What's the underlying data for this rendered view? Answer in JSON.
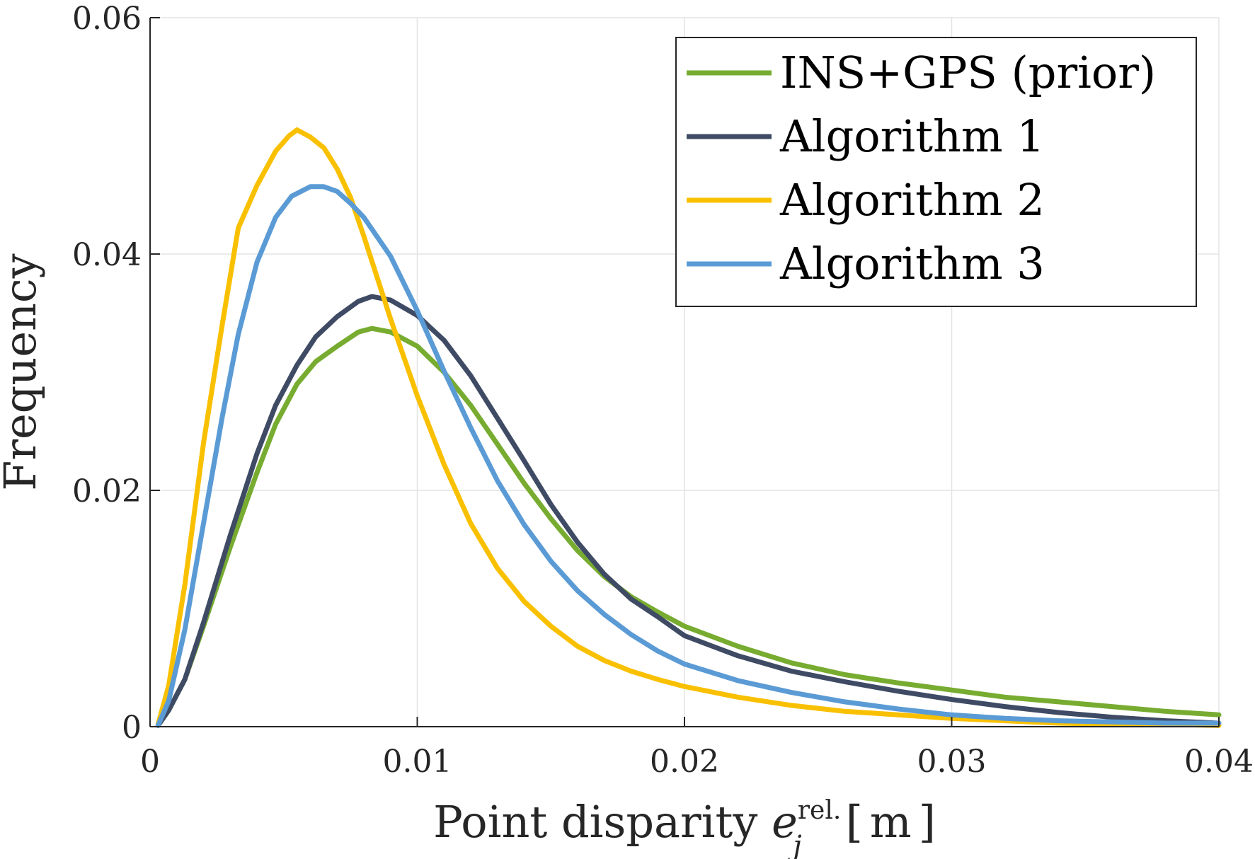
{
  "chart_data": {
    "type": "line",
    "xlabel_parts": {
      "prefix": "Point disparity ",
      "var": "e",
      "sub": "j",
      "sup": "rel.",
      "unit_open": "[",
      "unit": "m",
      "unit_close": "]"
    },
    "ylabel": "Frequency",
    "xlim": [
      0,
      0.04
    ],
    "ylim": [
      0,
      0.06
    ],
    "xticks": [
      0,
      0.01,
      0.02,
      0.03,
      0.04
    ],
    "xtick_labels": [
      "0",
      "0.01",
      "0.02",
      "0.03",
      "0.04"
    ],
    "yticks": [
      0,
      0.02,
      0.04,
      0.06
    ],
    "ytick_labels": [
      "0",
      "0.02",
      "0.04",
      "0.06"
    ],
    "grid": true,
    "legend_position": "top-right",
    "series": [
      {
        "name": "INS+GPS (prior)",
        "color": "#77AC30",
        "points": [
          [
            0.0003,
            0.0001
          ],
          [
            0.0007,
            0.0014
          ],
          [
            0.0013,
            0.004
          ],
          [
            0.002,
            0.0085
          ],
          [
            0.003,
            0.0152
          ],
          [
            0.004,
            0.0215
          ],
          [
            0.0047,
            0.0256
          ],
          [
            0.0055,
            0.029
          ],
          [
            0.0062,
            0.0309
          ],
          [
            0.007,
            0.0322
          ],
          [
            0.0078,
            0.0334
          ],
          [
            0.0083,
            0.0337
          ],
          [
            0.009,
            0.0334
          ],
          [
            0.01,
            0.0322
          ],
          [
            0.011,
            0.03
          ],
          [
            0.012,
            0.0272
          ],
          [
            0.013,
            0.0239
          ],
          [
            0.014,
            0.0206
          ],
          [
            0.015,
            0.0176
          ],
          [
            0.016,
            0.0149
          ],
          [
            0.017,
            0.0127
          ],
          [
            0.018,
            0.011
          ],
          [
            0.019,
            0.0097
          ],
          [
            0.02,
            0.0085
          ],
          [
            0.022,
            0.0068
          ],
          [
            0.024,
            0.0054
          ],
          [
            0.026,
            0.0044
          ],
          [
            0.028,
            0.0037
          ],
          [
            0.03,
            0.0031
          ],
          [
            0.032,
            0.0025
          ],
          [
            0.034,
            0.0021
          ],
          [
            0.036,
            0.0017
          ],
          [
            0.038,
            0.0013
          ],
          [
            0.04,
            0.001
          ]
        ]
      },
      {
        "name": "Algorithm 1",
        "color": "#3F4B64",
        "points": [
          [
            0.0003,
            0.0001
          ],
          [
            0.0007,
            0.0014
          ],
          [
            0.0013,
            0.004
          ],
          [
            0.002,
            0.0088
          ],
          [
            0.003,
            0.0162
          ],
          [
            0.004,
            0.0231
          ],
          [
            0.0047,
            0.0272
          ],
          [
            0.0055,
            0.0306
          ],
          [
            0.0062,
            0.033
          ],
          [
            0.007,
            0.0347
          ],
          [
            0.0078,
            0.036
          ],
          [
            0.0083,
            0.0364
          ],
          [
            0.009,
            0.0361
          ],
          [
            0.01,
            0.0348
          ],
          [
            0.011,
            0.0327
          ],
          [
            0.012,
            0.0297
          ],
          [
            0.013,
            0.0261
          ],
          [
            0.014,
            0.0225
          ],
          [
            0.015,
            0.0188
          ],
          [
            0.016,
            0.0156
          ],
          [
            0.017,
            0.0129
          ],
          [
            0.018,
            0.0108
          ],
          [
            0.019,
            0.0093
          ],
          [
            0.02,
            0.0077
          ],
          [
            0.022,
            0.006
          ],
          [
            0.024,
            0.0047
          ],
          [
            0.026,
            0.0038
          ],
          [
            0.028,
            0.003
          ],
          [
            0.03,
            0.0023
          ],
          [
            0.032,
            0.0017
          ],
          [
            0.034,
            0.0012
          ],
          [
            0.036,
            0.0008
          ],
          [
            0.038,
            0.0005
          ],
          [
            0.04,
            0.0003
          ]
        ]
      },
      {
        "name": "Algorithm 2",
        "color": "#F9C000",
        "points": [
          [
            0.0003,
            0.0002
          ],
          [
            0.0007,
            0.0035
          ],
          [
            0.0013,
            0.012
          ],
          [
            0.002,
            0.024
          ],
          [
            0.0027,
            0.034
          ],
          [
            0.0033,
            0.0422
          ],
          [
            0.004,
            0.0458
          ],
          [
            0.0047,
            0.0487
          ],
          [
            0.0052,
            0.05
          ],
          [
            0.0055,
            0.0505
          ],
          [
            0.006,
            0.0499
          ],
          [
            0.0065,
            0.049
          ],
          [
            0.007,
            0.0472
          ],
          [
            0.0075,
            0.0448
          ],
          [
            0.008,
            0.0415
          ],
          [
            0.009,
            0.0345
          ],
          [
            0.01,
            0.028
          ],
          [
            0.011,
            0.0222
          ],
          [
            0.012,
            0.0172
          ],
          [
            0.013,
            0.0134
          ],
          [
            0.014,
            0.0106
          ],
          [
            0.015,
            0.0085
          ],
          [
            0.016,
            0.0068
          ],
          [
            0.017,
            0.0056
          ],
          [
            0.018,
            0.0047
          ],
          [
            0.019,
            0.004
          ],
          [
            0.02,
            0.0034
          ],
          [
            0.022,
            0.0025
          ],
          [
            0.024,
            0.0018
          ],
          [
            0.026,
            0.0013
          ],
          [
            0.028,
            0.001
          ],
          [
            0.03,
            0.0007
          ],
          [
            0.032,
            0.0005
          ],
          [
            0.034,
            0.0003
          ],
          [
            0.036,
            0.0002
          ],
          [
            0.038,
            0.0002
          ],
          [
            0.04,
            0.0001
          ]
        ]
      },
      {
        "name": "Algorithm 3",
        "color": "#5B9BD5",
        "points": [
          [
            0.0003,
            0.0001
          ],
          [
            0.0007,
            0.0022
          ],
          [
            0.0013,
            0.0082
          ],
          [
            0.002,
            0.0172
          ],
          [
            0.0027,
            0.0262
          ],
          [
            0.0033,
            0.0332
          ],
          [
            0.004,
            0.0393
          ],
          [
            0.0047,
            0.0431
          ],
          [
            0.0053,
            0.0449
          ],
          [
            0.006,
            0.0457
          ],
          [
            0.0065,
            0.0457
          ],
          [
            0.007,
            0.0453
          ],
          [
            0.0075,
            0.0443
          ],
          [
            0.008,
            0.0431
          ],
          [
            0.009,
            0.0398
          ],
          [
            0.01,
            0.0352
          ],
          [
            0.011,
            0.0301
          ],
          [
            0.012,
            0.0253
          ],
          [
            0.013,
            0.0208
          ],
          [
            0.014,
            0.0171
          ],
          [
            0.015,
            0.014
          ],
          [
            0.016,
            0.0115
          ],
          [
            0.017,
            0.0095
          ],
          [
            0.018,
            0.0078
          ],
          [
            0.019,
            0.0064
          ],
          [
            0.02,
            0.0053
          ],
          [
            0.022,
            0.0039
          ],
          [
            0.024,
            0.0029
          ],
          [
            0.026,
            0.0021
          ],
          [
            0.028,
            0.0015
          ],
          [
            0.03,
            0.001
          ],
          [
            0.032,
            0.0007
          ],
          [
            0.034,
            0.0005
          ],
          [
            0.036,
            0.0004
          ],
          [
            0.038,
            0.0003
          ],
          [
            0.04,
            0.0003
          ]
        ]
      }
    ]
  }
}
